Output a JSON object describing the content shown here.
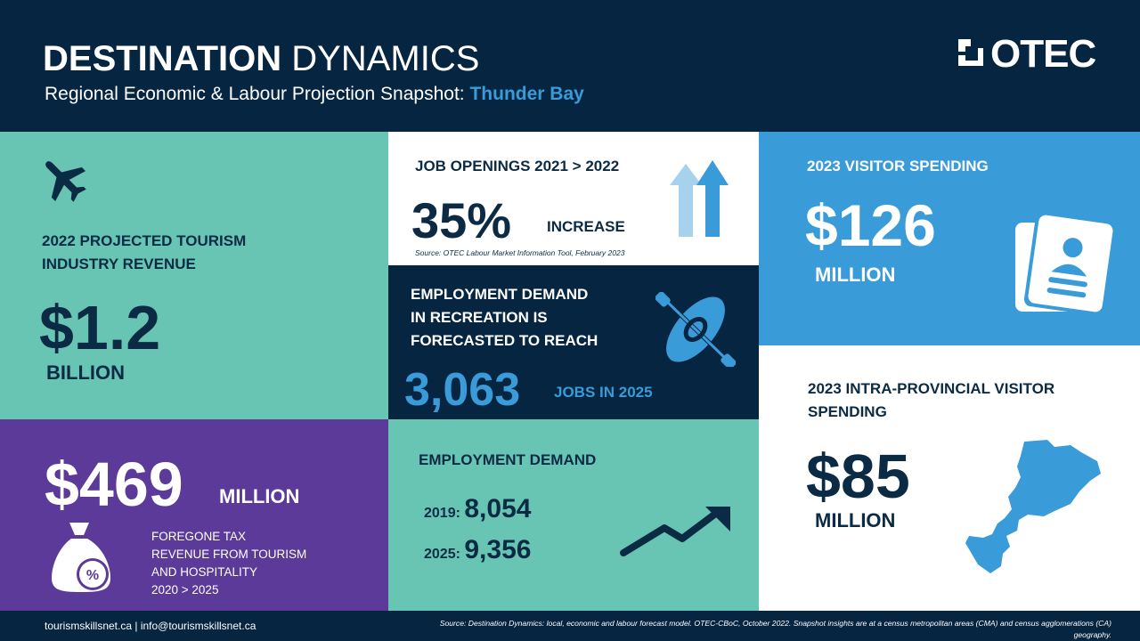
{
  "header": {
    "title_bold": "DESTINATION",
    "title_light": "DYNAMICS",
    "subtitle": "Regional Economic & Labour Projection Snapshot:",
    "location": "Thunder Bay",
    "logo": "OTEC"
  },
  "revenue": {
    "label_line1": "2022 PROJECTED TOURISM",
    "label_line2": "INDUSTRY REVENUE",
    "value": "$1.2",
    "unit": "BILLION",
    "icon": "airplane-icon"
  },
  "jobs": {
    "title": "JOB OPENINGS  2021 > 2022",
    "value": "35%",
    "unit": "INCREASE",
    "source": "Source: OTEC Labour Market Information Tool, February 2023",
    "icon": "up-arrow-icon"
  },
  "recreation": {
    "line1": "EMPLOYMENT  DEMAND",
    "line2": "IN RECREATION  IS",
    "line3": "FORECASTED TO REACH",
    "value": "3,063",
    "unit": "JOBS IN 2025",
    "icon": "kayak-icon"
  },
  "visitor": {
    "title": "2023 VISITOR SPENDING",
    "value": "$126",
    "unit": "MILLION",
    "icon": "passport-icon"
  },
  "intra": {
    "line1": "2023 INTRA-PROVINCIAL VISITOR",
    "line2": "SPENDING",
    "value": "$85",
    "unit": "MILLION",
    "icon": "region-map-icon"
  },
  "tax": {
    "value": "$469",
    "unit": "MILLION",
    "line1": "FOREGONE TAX",
    "line2": "REVENUE FROM TOURISM",
    "line3": "AND HOSPITALITY",
    "line4": "2020 > 2025",
    "icon": "money-bag-icon"
  },
  "employment": {
    "title": "EMPLOYMENT  DEMAND",
    "y1_label": "2019:",
    "y1_value": "8,054",
    "y2_label": "2025:",
    "y2_value": "9,356",
    "icon": "trend-up-icon"
  },
  "footer": {
    "contact": "tourismskillsnet.ca  |  info@tourismskillsnet.ca",
    "source_line1": "Source: Destination Dynamics: local, economic and labour forecast model. OTEC-CBoC, October 2022. Snapshot insights are at a census metropolitan areas (CMA) and census agglomerations (CA)",
    "source_line2": "geography."
  }
}
